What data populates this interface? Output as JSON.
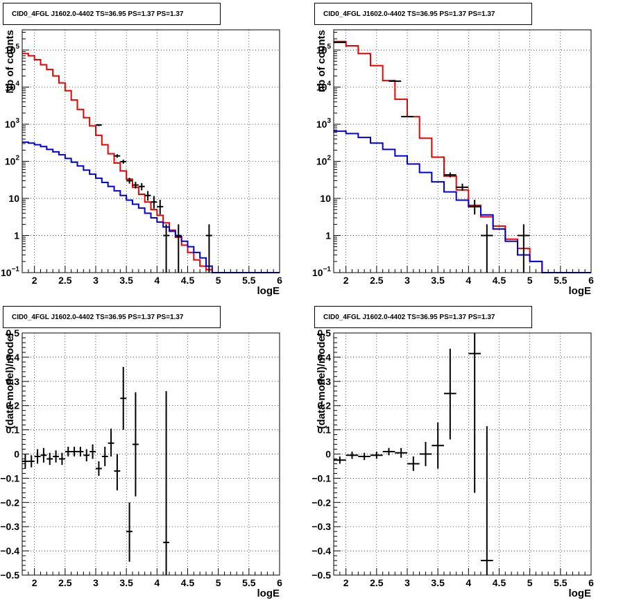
{
  "colors": {
    "data": "#000000",
    "total_model": "#ee0000",
    "component": "#0000dd",
    "grid": "#000000",
    "frame": "#000000"
  },
  "chart_data": [
    {
      "id": "top-left",
      "type": "line",
      "title": "CID0_4FGL J1602.0-4402 TS=36.95 PS=1.37 PS=1.37",
      "xlabel": "logE",
      "ylabel": "Nb of counts",
      "xlim": [
        1.8,
        6.0
      ],
      "ylim": [
        0.1,
        350000
      ],
      "yscale": "log",
      "grid": true,
      "x_ticks": [
        "2",
        "2.5",
        "3",
        "3.5",
        "4",
        "4.5",
        "5",
        "5.5",
        "6"
      ],
      "y_ticks": [
        {
          "value": 0.1,
          "base": "10",
          "exp": "−1"
        },
        {
          "value": 1,
          "text": "1"
        },
        {
          "value": 10,
          "text": "10"
        },
        {
          "value": 100,
          "base": "10",
          "exp": "2"
        },
        {
          "value": 1000,
          "base": "10",
          "exp": "3"
        },
        {
          "value": 10000,
          "base": "10",
          "exp": "4"
        },
        {
          "value": 100000,
          "base": "10",
          "exp": "5"
        }
      ],
      "bin_edges": [
        1.8,
        1.9,
        2.0,
        2.1,
        2.2,
        2.3,
        2.4,
        2.5,
        2.6,
        2.7,
        2.8,
        2.9,
        3.0,
        3.1,
        3.2,
        3.3,
        3.4,
        3.5,
        3.6,
        3.7,
        3.8,
        3.9,
        4.0,
        4.1,
        4.2,
        4.3,
        4.4,
        4.5,
        4.6,
        4.7,
        4.8,
        4.9,
        5.0,
        5.1,
        5.2,
        5.3,
        5.4,
        5.5,
        5.6,
        5.7,
        5.8,
        5.9,
        6.0
      ],
      "series": [
        {
          "role": "total_model",
          "values": [
            80000,
            70000,
            55000,
            40000,
            30000,
            20000,
            13000,
            8000,
            4500,
            2500,
            1500,
            900,
            500,
            280,
            160,
            90,
            55,
            33,
            20,
            13,
            8,
            5,
            3.5,
            2.2,
            1.4,
            0.9,
            0.55,
            0.35,
            0.22,
            0.15,
            0.12,
            0.1,
            0.1,
            0.1,
            0.1,
            0.1,
            0.1,
            0.1,
            0.1,
            0.1,
            0.1,
            0.1
          ]
        },
        {
          "role": "component",
          "values": [
            330,
            310,
            280,
            250,
            210,
            180,
            150,
            120,
            95,
            75,
            58,
            45,
            35,
            27,
            21,
            16,
            12,
            9,
            7,
            5.5,
            4,
            3,
            2.3,
            1.7,
            1.3,
            0.95,
            0.7,
            0.5,
            0.35,
            0.25,
            0.15,
            0.1,
            0.1,
            0.1,
            0.1,
            0.1,
            0.1,
            0.1,
            0.1,
            0.1,
            0.1,
            0.1
          ]
        }
      ],
      "points": [
        {
          "x": 3.05,
          "y": 950,
          "xerr": 0.05,
          "ylo": 890,
          "yhi": 1010
        },
        {
          "x": 3.35,
          "y": 140,
          "xerr": 0.05,
          "ylo": 125,
          "yhi": 155
        },
        {
          "x": 3.45,
          "y": 98,
          "xerr": 0.05,
          "ylo": 86,
          "yhi": 111
        },
        {
          "x": 3.55,
          "y": 30,
          "xerr": 0.05,
          "ylo": 25,
          "yhi": 36
        },
        {
          "x": 3.65,
          "y": 23,
          "xerr": 0.05,
          "ylo": 18.5,
          "yhi": 28
        },
        {
          "x": 3.75,
          "y": 21,
          "xerr": 0.05,
          "ylo": 16.5,
          "yhi": 26
        },
        {
          "x": 3.85,
          "y": 12,
          "xerr": 0.05,
          "ylo": 8.7,
          "yhi": 15.8
        },
        {
          "x": 3.95,
          "y": 8,
          "xerr": 0.05,
          "ylo": 5.3,
          "yhi": 11.6
        },
        {
          "x": 4.05,
          "y": 6,
          "xerr": 0.05,
          "ylo": 3.7,
          "yhi": 9.2
        },
        {
          "x": 4.15,
          "y": 1,
          "xerr": 0.05,
          "ylo": 0.1,
          "yhi": 2.0
        },
        {
          "x": 4.35,
          "y": 1,
          "xerr": 0.05,
          "ylo": 0.1,
          "yhi": 2.0
        },
        {
          "x": 4.85,
          "y": 1,
          "xerr": 0.05,
          "ylo": 0.1,
          "yhi": 2.0
        }
      ]
    },
    {
      "id": "top-right",
      "type": "line",
      "title": "CID0_4FGL J1602.0-4402 TS=36.95 PS=1.37 PS=1.37",
      "xlabel": "logE",
      "ylabel": "nb of counts",
      "xlim": [
        1.8,
        6.0
      ],
      "ylim": [
        0.1,
        350000
      ],
      "yscale": "log",
      "grid": true,
      "x_ticks": [
        "2",
        "2.5",
        "3",
        "3.5",
        "4",
        "4.5",
        "5",
        "5.5",
        "6"
      ],
      "y_ticks": [
        {
          "value": 0.1,
          "base": "10",
          "exp": "−1"
        },
        {
          "value": 1,
          "text": "1"
        },
        {
          "value": 10,
          "text": "10"
        },
        {
          "value": 100,
          "base": "10",
          "exp": "2"
        },
        {
          "value": 1000,
          "base": "10",
          "exp": "3"
        },
        {
          "value": 10000,
          "base": "10",
          "exp": "4"
        },
        {
          "value": 100000,
          "base": "10",
          "exp": "5"
        }
      ],
      "bin_edges": [
        1.8,
        2.0,
        2.2,
        2.4,
        2.6,
        2.8,
        3.0,
        3.2,
        3.4,
        3.6,
        3.8,
        4.0,
        4.2,
        4.4,
        4.6,
        4.8,
        5.0,
        5.2,
        5.4,
        5.6,
        5.8,
        6.0
      ],
      "series": [
        {
          "role": "total_model",
          "values": [
            170000,
            130000,
            80000,
            38000,
            15000,
            4700,
            1600,
            420,
            130,
            40,
            17,
            6.5,
            3.2,
            1.8,
            0.8,
            0.45,
            0.2,
            0.1,
            0.1,
            0.1,
            0.1
          ]
        },
        {
          "role": "component",
          "values": [
            650,
            560,
            440,
            310,
            210,
            140,
            85,
            50,
            28,
            15,
            9,
            6,
            3.6,
            1.5,
            0.7,
            0.3,
            0.2,
            0.1,
            0.1,
            0.1,
            0.1
          ]
        }
      ],
      "points": [
        {
          "x": 1.9,
          "y": 160000,
          "xerr": 0.1,
          "ylo": 159000,
          "yhi": 161000
        },
        {
          "x": 2.8,
          "y": 14500,
          "xerr": 0.1,
          "ylo": 14300,
          "yhi": 14700
        },
        {
          "x": 3.0,
          "y": 1600,
          "xerr": 0.1,
          "ylo": 1560,
          "yhi": 1640
        },
        {
          "x": 3.7,
          "y": 43,
          "xerr": 0.1,
          "ylo": 37,
          "yhi": 50
        },
        {
          "x": 3.9,
          "y": 20,
          "xerr": 0.1,
          "ylo": 16,
          "yhi": 25
        },
        {
          "x": 4.1,
          "y": 6,
          "xerr": 0.1,
          "ylo": 3.7,
          "yhi": 9.2
        },
        {
          "x": 4.3,
          "y": 1,
          "xerr": 0.1,
          "ylo": 0.1,
          "yhi": 2.0
        },
        {
          "x": 4.9,
          "y": 1,
          "xerr": 0.1,
          "ylo": 0.1,
          "yhi": 2.0
        }
      ]
    },
    {
      "id": "bottom-left",
      "type": "scatter",
      "title": "CID0_4FGL J1602.0-4402 TS=36.95 PS=1.37 PS=1.37",
      "xlabel": "logE",
      "ylabel": "(data-model)/model",
      "xlim": [
        1.8,
        6.0
      ],
      "ylim": [
        -0.5,
        0.5
      ],
      "yscale": "linear",
      "grid": true,
      "x_ticks": [
        "2",
        "2.5",
        "3",
        "3.5",
        "4",
        "4.5",
        "5",
        "5.5",
        "6"
      ],
      "y_ticks": [
        {
          "value": -0.5,
          "text": "−0.5"
        },
        {
          "value": -0.4,
          "text": "−0.4"
        },
        {
          "value": -0.3,
          "text": "−0.3"
        },
        {
          "value": -0.2,
          "text": "−0.2"
        },
        {
          "value": -0.1,
          "text": "−0.1"
        },
        {
          "value": 0,
          "text": "0"
        },
        {
          "value": 0.1,
          "text": "0.1"
        },
        {
          "value": 0.2,
          "text": "0.2"
        },
        {
          "value": 0.3,
          "text": "0.3"
        },
        {
          "value": 0.4,
          "text": "0.4"
        },
        {
          "value": 0.5,
          "text": "0.5"
        }
      ],
      "points": [
        {
          "x": 1.85,
          "y": -0.03,
          "xerr": 0.05,
          "ylo": -0.06,
          "yhi": 0.0
        },
        {
          "x": 1.95,
          "y": -0.03,
          "xerr": 0.05,
          "ylo": -0.055,
          "yhi": -0.005
        },
        {
          "x": 2.05,
          "y": -0.01,
          "xerr": 0.05,
          "ylo": -0.04,
          "yhi": 0.02
        },
        {
          "x": 2.15,
          "y": -0.005,
          "xerr": 0.05,
          "ylo": -0.035,
          "yhi": 0.025
        },
        {
          "x": 2.25,
          "y": -0.02,
          "xerr": 0.05,
          "ylo": -0.045,
          "yhi": 0.005
        },
        {
          "x": 2.35,
          "y": -0.01,
          "xerr": 0.05,
          "ylo": -0.035,
          "yhi": 0.015
        },
        {
          "x": 2.45,
          "y": -0.02,
          "xerr": 0.05,
          "ylo": -0.045,
          "yhi": 0.005
        },
        {
          "x": 2.55,
          "y": 0.01,
          "xerr": 0.05,
          "ylo": -0.01,
          "yhi": 0.03
        },
        {
          "x": 2.65,
          "y": 0.01,
          "xerr": 0.05,
          "ylo": -0.01,
          "yhi": 0.03
        },
        {
          "x": 2.75,
          "y": 0.01,
          "xerr": 0.05,
          "ylo": -0.01,
          "yhi": 0.03
        },
        {
          "x": 2.85,
          "y": -0.005,
          "xerr": 0.05,
          "ylo": -0.03,
          "yhi": 0.02
        },
        {
          "x": 2.95,
          "y": 0.01,
          "xerr": 0.05,
          "ylo": -0.02,
          "yhi": 0.04
        },
        {
          "x": 3.05,
          "y": -0.06,
          "xerr": 0.05,
          "ylo": -0.09,
          "yhi": -0.03
        },
        {
          "x": 3.15,
          "y": -0.01,
          "xerr": 0.05,
          "ylo": -0.05,
          "yhi": 0.03
        },
        {
          "x": 3.25,
          "y": 0.045,
          "xerr": 0.05,
          "ylo": -0.01,
          "yhi": 0.105
        },
        {
          "x": 3.35,
          "y": -0.07,
          "xerr": 0.05,
          "ylo": -0.15,
          "yhi": 0.0
        },
        {
          "x": 3.45,
          "y": 0.23,
          "xerr": 0.05,
          "ylo": 0.1,
          "yhi": 0.36
        },
        {
          "x": 3.55,
          "y": -0.32,
          "xerr": 0.05,
          "ylo": -0.445,
          "yhi": -0.2
        },
        {
          "x": 3.65,
          "y": 0.04,
          "xerr": 0.05,
          "ylo": -0.175,
          "yhi": 0.255
        },
        {
          "x": 4.15,
          "y": -0.365,
          "xerr": 0.05,
          "ylo": -0.5,
          "yhi": 0.26
        }
      ]
    },
    {
      "id": "bottom-right",
      "type": "scatter",
      "title": "CID0_4FGL J1602.0-4402 TS=36.95 PS=1.37 PS=1.37",
      "xlabel": "logE",
      "ylabel": "(data-model)/model",
      "xlim": [
        1.8,
        6.0
      ],
      "ylim": [
        -0.5,
        0.5
      ],
      "yscale": "linear",
      "grid": true,
      "x_ticks": [
        "2",
        "2.5",
        "3",
        "3.5",
        "4",
        "4.5",
        "5",
        "5.5",
        "6"
      ],
      "y_ticks": [
        {
          "value": -0.5,
          "text": "−0.5"
        },
        {
          "value": -0.4,
          "text": "−0.4"
        },
        {
          "value": -0.3,
          "text": "−0.3"
        },
        {
          "value": -0.2,
          "text": "−0.2"
        },
        {
          "value": -0.1,
          "text": "−0.1"
        },
        {
          "value": 0,
          "text": "0"
        },
        {
          "value": 0.1,
          "text": "0.1"
        },
        {
          "value": 0.2,
          "text": "0.2"
        },
        {
          "value": 0.3,
          "text": "0.3"
        },
        {
          "value": 0.4,
          "text": "0.4"
        },
        {
          "value": 0.5,
          "text": "0.5"
        }
      ],
      "points": [
        {
          "x": 1.9,
          "y": -0.025,
          "xerr": 0.1,
          "ylo": -0.04,
          "yhi": -0.01
        },
        {
          "x": 2.1,
          "y": -0.005,
          "xerr": 0.1,
          "ylo": -0.02,
          "yhi": 0.01
        },
        {
          "x": 2.3,
          "y": -0.01,
          "xerr": 0.1,
          "ylo": -0.025,
          "yhi": 0.005
        },
        {
          "x": 2.5,
          "y": -0.005,
          "xerr": 0.1,
          "ylo": -0.02,
          "yhi": 0.01
        },
        {
          "x": 2.7,
          "y": 0.01,
          "xerr": 0.1,
          "ylo": -0.005,
          "yhi": 0.025
        },
        {
          "x": 2.9,
          "y": 0.005,
          "xerr": 0.1,
          "ylo": -0.015,
          "yhi": 0.025
        },
        {
          "x": 3.1,
          "y": -0.04,
          "xerr": 0.1,
          "ylo": -0.07,
          "yhi": -0.01
        },
        {
          "x": 3.3,
          "y": 0.0,
          "xerr": 0.1,
          "ylo": -0.05,
          "yhi": 0.05
        },
        {
          "x": 3.5,
          "y": 0.035,
          "xerr": 0.1,
          "ylo": -0.06,
          "yhi": 0.13
        },
        {
          "x": 3.7,
          "y": 0.25,
          "xerr": 0.1,
          "ylo": 0.06,
          "yhi": 0.435
        },
        {
          "x": 4.1,
          "y": 0.415,
          "xerr": 0.1,
          "ylo": -0.16,
          "yhi": 0.5
        },
        {
          "x": 4.3,
          "y": -0.44,
          "xerr": 0.1,
          "ylo": -0.5,
          "yhi": 0.115
        }
      ]
    }
  ]
}
